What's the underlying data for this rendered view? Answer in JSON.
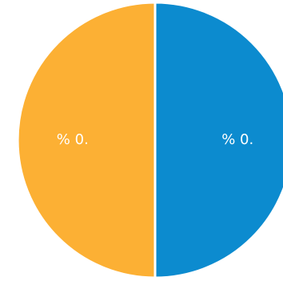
{
  "chart_data": {
    "type": "pie",
    "slices": [
      {
        "label": "% 0.",
        "value": 50,
        "color": "#0c8bcf"
      },
      {
        "label": "% 0.",
        "value": 50,
        "color": "#fcb034"
      }
    ],
    "start_angle_deg": 0,
    "direction": "clockwise",
    "separator_color": "#ffffff"
  }
}
